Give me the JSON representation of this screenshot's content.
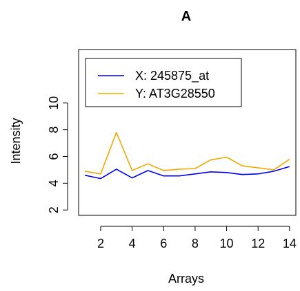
{
  "chart_data": {
    "type": "line",
    "title": "A",
    "xlabel": "Arrays",
    "ylabel": "Intensity",
    "x": [
      1,
      2,
      3,
      4,
      5,
      6,
      7,
      8,
      9,
      10,
      11,
      12,
      13,
      14
    ],
    "xlim": [
      0.6,
      14.4
    ],
    "ylim": [
      1.6,
      14.0
    ],
    "x_ticks": [
      2,
      4,
      6,
      8,
      10,
      12,
      14
    ],
    "y_ticks": [
      2,
      4,
      6,
      8,
      10
    ],
    "grid": false,
    "legend_position": "top-left",
    "series": [
      {
        "name": "X: 245875_at",
        "color": "#0000ee",
        "values": [
          4.6,
          4.35,
          5.05,
          4.4,
          4.95,
          4.55,
          4.55,
          4.7,
          4.85,
          4.8,
          4.65,
          4.7,
          4.9,
          5.25
        ]
      },
      {
        "name": "Y: AT3G28550",
        "color": "#f0a800",
        "values": [
          4.9,
          4.7,
          7.8,
          4.95,
          5.45,
          4.95,
          5.05,
          5.1,
          5.75,
          5.95,
          5.3,
          5.15,
          5.0,
          5.8
        ]
      }
    ]
  }
}
